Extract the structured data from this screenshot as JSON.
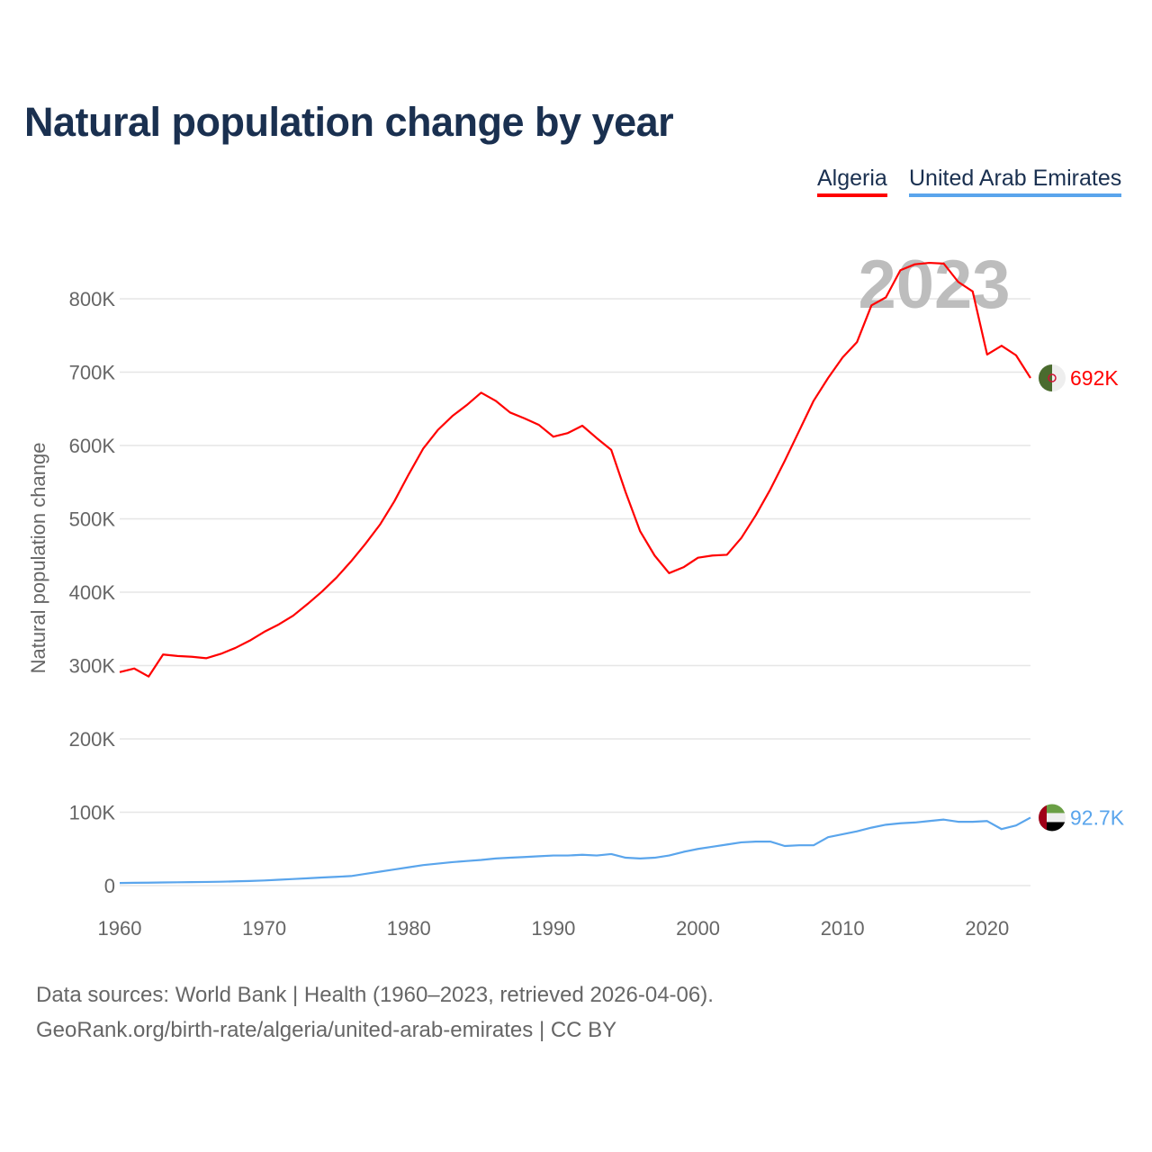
{
  "title": "Natural population change by year",
  "legend": [
    {
      "name": "Algeria",
      "color": "#ff0000"
    },
    {
      "name": "United Arab Emirates",
      "color": "#5aa5ec"
    }
  ],
  "year_watermark": "2023",
  "source_line1": "Data sources: World Bank | Health (1960–2023, retrieved 2026-04-06).",
  "source_line2": "GeoRank.org/birth-rate/algeria/united-arab-emirates | CC BY",
  "chart_data": {
    "type": "line",
    "title": "Natural population change by year",
    "xlabel": "",
    "ylabel": "Natural population change",
    "xlim": [
      1960,
      2023
    ],
    "ylim": [
      0,
      850000
    ],
    "x_ticks": [
      1960,
      1970,
      1980,
      1990,
      2000,
      2010,
      2020
    ],
    "y_ticks": [
      0,
      100000,
      200000,
      300000,
      400000,
      500000,
      600000,
      700000,
      800000
    ],
    "y_tick_labels": [
      "0",
      "100K",
      "200K",
      "300K",
      "400K",
      "500K",
      "600K",
      "700K",
      "800K"
    ],
    "grid": true,
    "legend_position": "top-right",
    "x_start": 1960,
    "series": [
      {
        "name": "Algeria",
        "color": "#ff0000",
        "end_label": "692K",
        "values": [
          291,
          296,
          285,
          315,
          313,
          312,
          310,
          316,
          324,
          334,
          346,
          356,
          368,
          384,
          401,
          420,
          442,
          466,
          492,
          524,
          561,
          596,
          621,
          640,
          655,
          672,
          661,
          645,
          637,
          628,
          612,
          617,
          627,
          610,
          594,
          536,
          483,
          450,
          426,
          434,
          447,
          450,
          451,
          474,
          505,
          540,
          579,
          620,
          661,
          692,
          720,
          741,
          791,
          802,
          839,
          847,
          849,
          848,
          823,
          810,
          724,
          736,
          723,
          692
        ],
        "unit": "thousands"
      },
      {
        "name": "United Arab Emirates",
        "color": "#5aa5ec",
        "end_label": "92.7K",
        "values": [
          3.5,
          3.8,
          4,
          4.3,
          4.5,
          4.8,
          5,
          5.3,
          5.8,
          6.3,
          7,
          8,
          9,
          10,
          11,
          12,
          13,
          16,
          19,
          22,
          25,
          28,
          30,
          32,
          33.5,
          35,
          37,
          38,
          39,
          40,
          41,
          41,
          42,
          41,
          43,
          38,
          37,
          38,
          41,
          46,
          50,
          53,
          56,
          59,
          60,
          60,
          54,
          55,
          55,
          66,
          70,
          74,
          79,
          83,
          85,
          86,
          88,
          90,
          87,
          87,
          88,
          77,
          82,
          92.7
        ],
        "unit": "thousands"
      }
    ]
  }
}
